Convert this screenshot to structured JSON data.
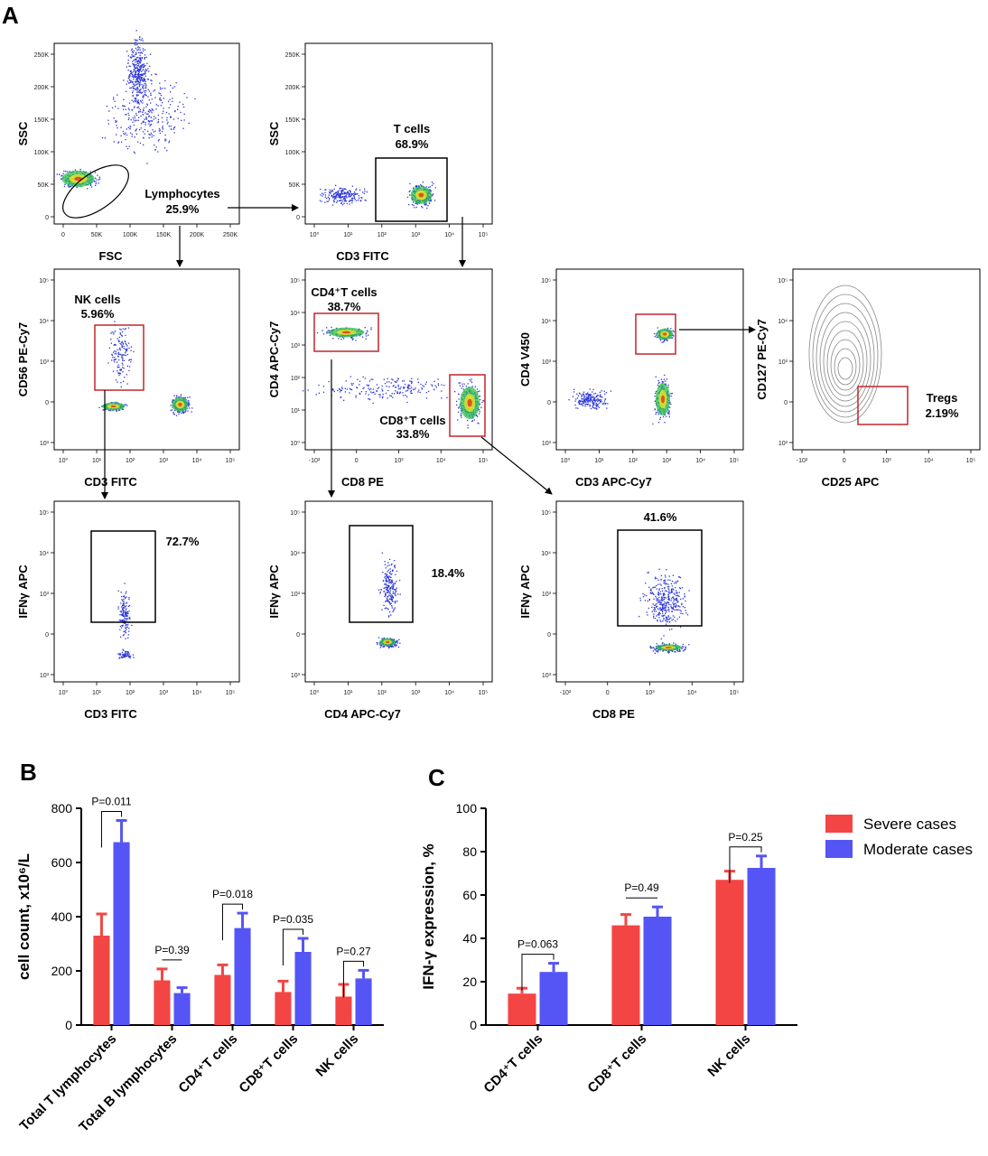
{
  "panel_letters": {
    "a": "A",
    "b": "B",
    "c": "C"
  },
  "flow": {
    "plots": [
      {
        "id": "p1",
        "xlabel": "FSC",
        "ylabel": "SSC",
        "xticks": [
          "0",
          "50K",
          "100K",
          "150K",
          "200K",
          "250K"
        ],
        "yticks": [
          "250K",
          "200K",
          "150K",
          "100K",
          "50K",
          "0"
        ],
        "gate_label": "Lymphocytes",
        "gate_value": "25.9%"
      },
      {
        "id": "p2",
        "xlabel": "CD3 FITC",
        "ylabel": "SSC",
        "xticks": [
          "10⁰",
          "10¹",
          "10²",
          "10³",
          "10⁴",
          "10⁵"
        ],
        "yticks": [
          "250K",
          "200K",
          "150K",
          "100K",
          "50K",
          "0"
        ],
        "gate_label": "T cells",
        "gate_value": "68.9%"
      },
      {
        "id": "p3",
        "xlabel": "CD3 FITC",
        "ylabel": "CD56 PE-Cy7",
        "xticks": [
          "10⁰",
          "10¹",
          "10²",
          "10³",
          "10⁴",
          "10⁵"
        ],
        "yticks": [
          "10⁵",
          "10⁴",
          "10³",
          "0",
          "10³"
        ],
        "gate_label": "NK cells",
        "gate_value": "5.96%"
      },
      {
        "id": "p4",
        "xlabel": "CD8 PE",
        "ylabel": "CD4 APC-Cy7",
        "xticks": [
          "-10³",
          "0",
          "10³",
          "10⁴",
          "10⁵"
        ],
        "yticks": [
          "10⁵",
          "10⁴",
          "10³",
          "10²",
          "10¹",
          "10⁰"
        ],
        "gate_label": "CD4⁺T cells",
        "gate_value": "38.7%",
        "gate2_label": "CD8⁺T cells",
        "gate2_value": "33.8%"
      },
      {
        "id": "p5",
        "xlabel": "CD3 APC-Cy7",
        "ylabel": "CD4 V450",
        "xticks": [
          "10⁰",
          "10¹",
          "10²",
          "10³",
          "10⁴",
          "10⁵"
        ],
        "yticks": [
          "10⁵",
          "10⁴",
          "10³",
          "0",
          "10³"
        ]
      },
      {
        "id": "p6",
        "xlabel": "CD25 APC",
        "ylabel": "CD127 PE-Cy7",
        "xticks": [
          "-10³",
          "0",
          "10³",
          "10⁴",
          "10⁵"
        ],
        "yticks": [
          "10⁵",
          "10⁴",
          "10³",
          "0",
          "10³"
        ],
        "gate_label": "Tregs",
        "gate_value": "2.19%"
      },
      {
        "id": "p7",
        "xlabel": "CD3 FITC",
        "ylabel": "IFNγ APC",
        "xticks": [
          "10⁰",
          "10¹",
          "10²",
          "10³",
          "10⁴",
          "10⁵"
        ],
        "yticks": [
          "10⁵",
          "10⁴",
          "10³",
          "0",
          "10³"
        ],
        "gate_value": "72.7%"
      },
      {
        "id": "p8",
        "xlabel": "CD4 APC-Cy7",
        "ylabel": "IFNγ APC",
        "xticks": [
          "10⁰",
          "10¹",
          "10²",
          "10³",
          "10⁴",
          "10⁵"
        ],
        "yticks": [
          "10⁵",
          "10⁴",
          "10³",
          "0",
          "10³"
        ],
        "gate_value": "18.4%"
      },
      {
        "id": "p9",
        "xlabel": "CD8 PE",
        "ylabel": "IFNγ APC",
        "xticks": [
          "-10³",
          "0",
          "10³",
          "10⁴",
          "10⁵"
        ],
        "yticks": [
          "10⁵",
          "10⁴",
          "10³",
          "0",
          "10³"
        ],
        "gate_value": "41.6%"
      }
    ]
  },
  "colors": {
    "severe": "#f44545",
    "moderate": "#5555f5",
    "gate_red": "#c1272d",
    "gate_black": "#000000"
  },
  "chart_data": [
    {
      "type": "bar",
      "title": "",
      "xlabel": "",
      "ylabel": "cell count, x10⁶/L",
      "ylim": [
        0,
        800
      ],
      "yticks": [
        "0",
        "200",
        "400",
        "600",
        "800"
      ],
      "categories": [
        "Total T lymphocytes",
        "Total B lymphocytes",
        "CD4⁺T cells",
        "CD8⁺T cells",
        "NK cells"
      ],
      "series": [
        {
          "name": "Severe cases",
          "values": [
            330,
            165,
            185,
            122,
            105
          ],
          "errors": [
            80,
            42,
            37,
            40,
            45
          ]
        },
        {
          "name": "Moderate cases",
          "values": [
            675,
            118,
            358,
            270,
            172
          ],
          "errors": [
            80,
            20,
            55,
            50,
            30
          ]
        }
      ],
      "p_values": [
        "P=0.011",
        "P=0.39",
        "P=0.018",
        "P=0.035",
        "P=0.27"
      ],
      "legend": "none"
    },
    {
      "type": "bar",
      "title": "",
      "xlabel": "",
      "ylabel": "IFN-γ expression, %",
      "ylim": [
        0,
        100
      ],
      "yticks": [
        "0",
        "20",
        "40",
        "60",
        "80",
        "100"
      ],
      "categories": [
        "CD4⁺T cells",
        "CD8⁺T cells",
        "NK cells"
      ],
      "series": [
        {
          "name": "Severe cases",
          "values": [
            14.5,
            46,
            67
          ],
          "errors": [
            2.5,
            5,
            4
          ]
        },
        {
          "name": "Moderate cases",
          "values": [
            24.5,
            50,
            72.5
          ],
          "errors": [
            4,
            4.5,
            5.5
          ]
        }
      ],
      "p_values": [
        "P=0.063",
        "P=0.49",
        "P=0.25"
      ],
      "legend": "right"
    }
  ]
}
